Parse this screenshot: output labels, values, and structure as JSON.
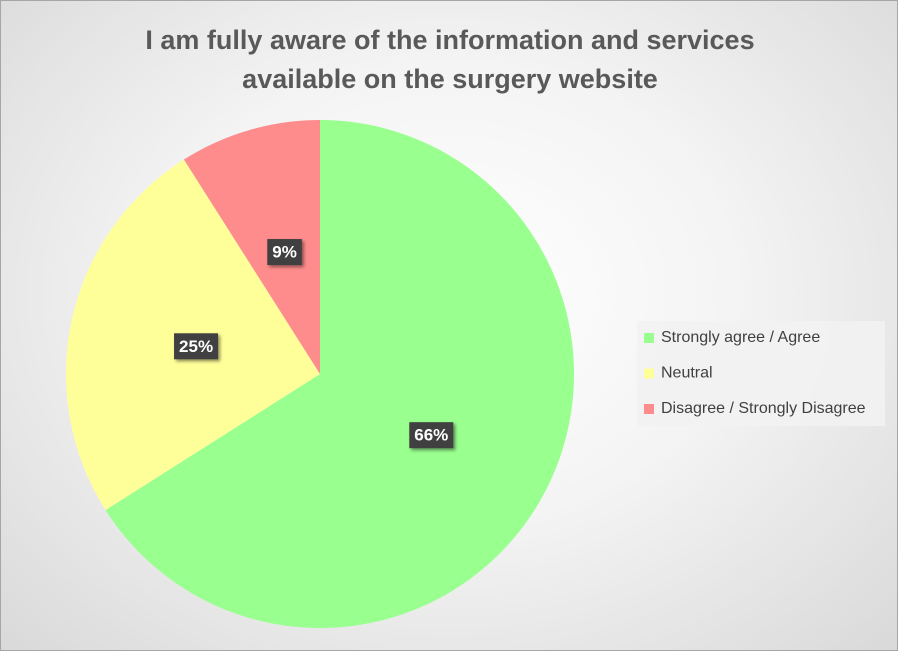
{
  "chart_data": {
    "type": "pie",
    "title": "I am fully aware of the information and services available on the surgery website",
    "categories": [
      "Strongly agree / Agree",
      "Neutral",
      "Disagree / Strongly Disagree"
    ],
    "values": [
      66,
      25,
      9
    ],
    "value_labels": [
      "66%",
      "25%",
      "9%"
    ],
    "colors": [
      "#99ff8f",
      "#ffff99",
      "#ff8c8c"
    ],
    "legend": "right"
  }
}
